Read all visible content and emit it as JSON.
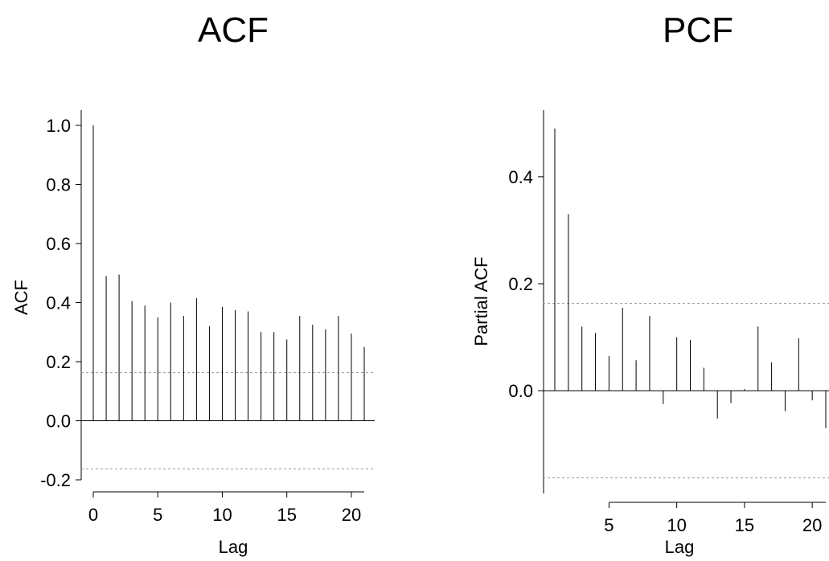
{
  "chart_data": [
    {
      "type": "bar",
      "title": "ACF",
      "xlabel": "Lag",
      "ylabel": "ACF",
      "xlim": [
        0,
        21
      ],
      "ylim": [
        -0.2,
        1.0
      ],
      "x_ticks": [
        0,
        5,
        10,
        15,
        20
      ],
      "y_ticks": [
        -0.2,
        0.0,
        0.2,
        0.4,
        0.6,
        0.8,
        1.0
      ],
      "y_tick_labels": [
        "-0.2",
        "0.0",
        "0.2",
        "0.4",
        "0.6",
        "0.8",
        "1.0"
      ],
      "confidence_band": [
        -0.163,
        0.163
      ],
      "lags": [
        0,
        1,
        2,
        3,
        4,
        5,
        6,
        7,
        8,
        9,
        10,
        11,
        12,
        13,
        14,
        15,
        16,
        17,
        18,
        19,
        20,
        21
      ],
      "values": [
        1.0,
        0.49,
        0.495,
        0.405,
        0.39,
        0.35,
        0.4,
        0.355,
        0.415,
        0.32,
        0.385,
        0.375,
        0.37,
        0.3,
        0.3,
        0.275,
        0.355,
        0.325,
        0.31,
        0.355,
        0.295,
        0.25
      ]
    },
    {
      "type": "bar",
      "title": "PCF",
      "xlabel": "Lag",
      "ylabel": "Partial ACF",
      "xlim": [
        1,
        21
      ],
      "ylim": [
        -0.19,
        0.52
      ],
      "x_ticks": [
        5,
        10,
        15,
        20
      ],
      "y_ticks": [
        0.0,
        0.2,
        0.4
      ],
      "y_tick_labels": [
        "0.0",
        "0.2",
        "0.4"
      ],
      "confidence_band": [
        -0.163,
        0.163
      ],
      "lags": [
        1,
        2,
        3,
        4,
        5,
        6,
        7,
        8,
        9,
        10,
        11,
        12,
        13,
        14,
        15,
        16,
        17,
        18,
        19,
        20,
        21
      ],
      "values": [
        0.49,
        0.33,
        0.12,
        0.108,
        0.065,
        0.155,
        0.057,
        0.14,
        -0.025,
        0.1,
        0.095,
        0.043,
        -0.052,
        -0.023,
        0.003,
        0.12,
        0.053,
        -0.038,
        0.098,
        -0.018,
        -0.07
      ]
    }
  ]
}
